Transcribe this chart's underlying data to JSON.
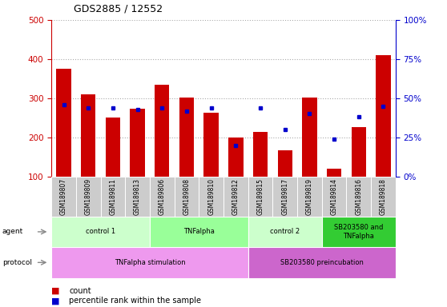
{
  "title": "GDS2885 / 12552",
  "samples": [
    "GSM189807",
    "GSM189809",
    "GSM189811",
    "GSM189813",
    "GSM189806",
    "GSM189808",
    "GSM189810",
    "GSM189812",
    "GSM189815",
    "GSM189817",
    "GSM189819",
    "GSM189814",
    "GSM189816",
    "GSM189818"
  ],
  "counts": [
    375,
    310,
    250,
    273,
    335,
    302,
    263,
    200,
    213,
    168,
    301,
    120,
    226,
    410
  ],
  "percentile_ranks": [
    46,
    44,
    44,
    43,
    44,
    42,
    44,
    20,
    44,
    30,
    40,
    24,
    38,
    45
  ],
  "ylim_left": [
    100,
    500
  ],
  "ylim_right": [
    0,
    100
  ],
  "yticks_left": [
    100,
    200,
    300,
    400,
    500
  ],
  "yticks_right": [
    0,
    25,
    50,
    75,
    100
  ],
  "ytick_labels_right": [
    "0%",
    "25%",
    "50%",
    "75%",
    "100%"
  ],
  "agent_groups": [
    {
      "label": "control 1",
      "start": 0,
      "end": 4,
      "color": "#ccffcc"
    },
    {
      "label": "TNFalpha",
      "start": 4,
      "end": 8,
      "color": "#99ff99"
    },
    {
      "label": "control 2",
      "start": 8,
      "end": 11,
      "color": "#ccffcc"
    },
    {
      "label": "SB203580 and\nTNFalpha",
      "start": 11,
      "end": 14,
      "color": "#33cc33"
    }
  ],
  "protocol_groups": [
    {
      "label": "TNFalpha stimulation",
      "start": 0,
      "end": 8,
      "color": "#ee99ee"
    },
    {
      "label": "SB203580 preincubation",
      "start": 8,
      "end": 14,
      "color": "#cc66cc"
    }
  ],
  "bar_color": "#cc0000",
  "marker_color": "#0000cc",
  "grid_color": "#aaaaaa",
  "tick_color_left": "#cc0000",
  "tick_color_right": "#0000cc",
  "sample_label_bg": "#cccccc",
  "legend_count_color": "#cc0000",
  "legend_pct_color": "#0000cc"
}
